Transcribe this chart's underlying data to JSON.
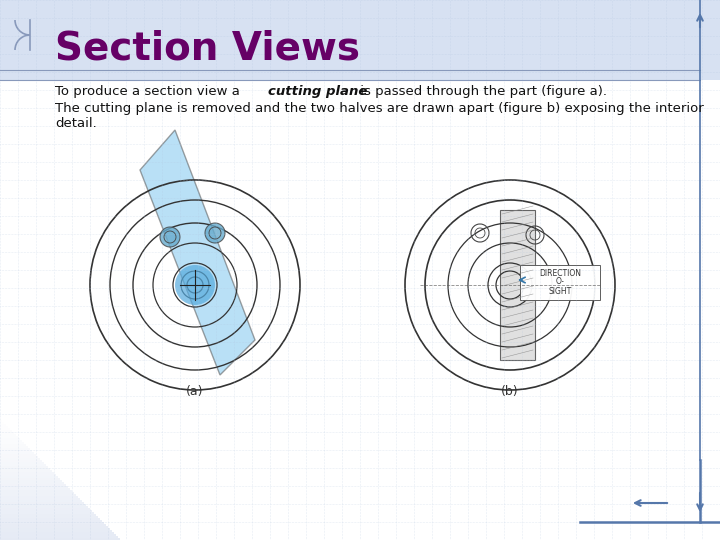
{
  "title": "Section Views",
  "title_color": "#660066",
  "title_fontsize": 28,
  "bg_color": "#ffffff",
  "header_bg": "#d0dcf0",
  "grid_color": "#b0c4de",
  "text1": "To produce a section view a ",
  "text1_bold": "cutting plane",
  "text1_rest": " is passed through the part (figure a).",
  "text2": "The cutting plane is removed and the two halves are drawn apart (figure b) exposing the interior\ndetail.",
  "fig_a_label": "(a)",
  "fig_b_label": "(b)",
  "border_color": "#5577aa",
  "arrow_color": "#5577aa",
  "body_fontsize": 9.5
}
